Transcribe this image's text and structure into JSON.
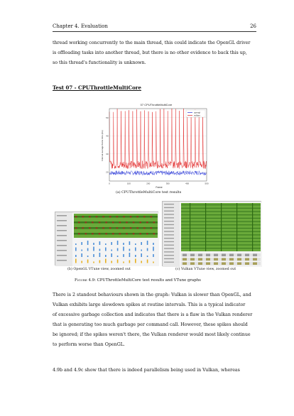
{
  "header": {
    "chapter": "Chapter 4. Evaluation",
    "page_number": "26"
  },
  "intro_lines": [
    "thread working concurrently to the main thread, this could indicate the OpenGL driver",
    "is offloading tasks into another thread, but there is no other evidence to back this up,",
    "so this thread's functionality is unknown."
  ],
  "section_title": "Test 07 - CPUThrottleMultiCore",
  "chart_data": {
    "type": "line",
    "title": "07 CPUThrottleMultiCore",
    "xlabel": "Frame",
    "ylabel": "Interval average frame time (ms)",
    "xlim": [
      0,
      500
    ],
    "ylim": [
      15,
      55
    ],
    "xticks": [
      "0",
      "100",
      "200",
      "300",
      "400",
      "500"
    ],
    "yticks": [
      "20",
      "30",
      "40",
      "50"
    ],
    "legend": [
      "opengl",
      "vulkan"
    ],
    "legend_position": "top-right",
    "series": [
      {
        "name": "opengl",
        "color": "#2432d8",
        "baseline": 19.5,
        "noise": 1.2
      },
      {
        "name": "vulkan",
        "color": "#e02020",
        "baseline": 24,
        "noise": 2.2,
        "spike_interval": 20,
        "spike_peak": 55
      }
    ]
  },
  "sub_a_caption": "(a) CPUThrottleMultiCore test results",
  "sub_b_caption": "(b) OpenGL VTune view, zoomed out",
  "sub_c_caption": "(c) Vulkan VTune view, zoomed out",
  "figure_caption_label": "Figure 4.9:",
  "figure_caption_text": "CPUThrottleMultiCore test results and VTune graphs",
  "body_lines": [
    "There is 2 standout behaviours shown in the graph: Vulkan is slower than OpenGL, and",
    "Vulkan exhibits large slowdown spikes at routine intervals.  This is a typical indicator",
    "of excessive garbage collection and indicates that there is a flaw in the Vulkan renderer",
    "that is generating too much garbage per command call.  However, these spikes should",
    "be ignored; if the spikes weren't there, the Vulkan renderer would most likely continue",
    "to perform worse than OpenGL."
  ],
  "last_line": "4.9b and 4.9c show that there is indeed parallelism being used in Vulkan, whereas"
}
